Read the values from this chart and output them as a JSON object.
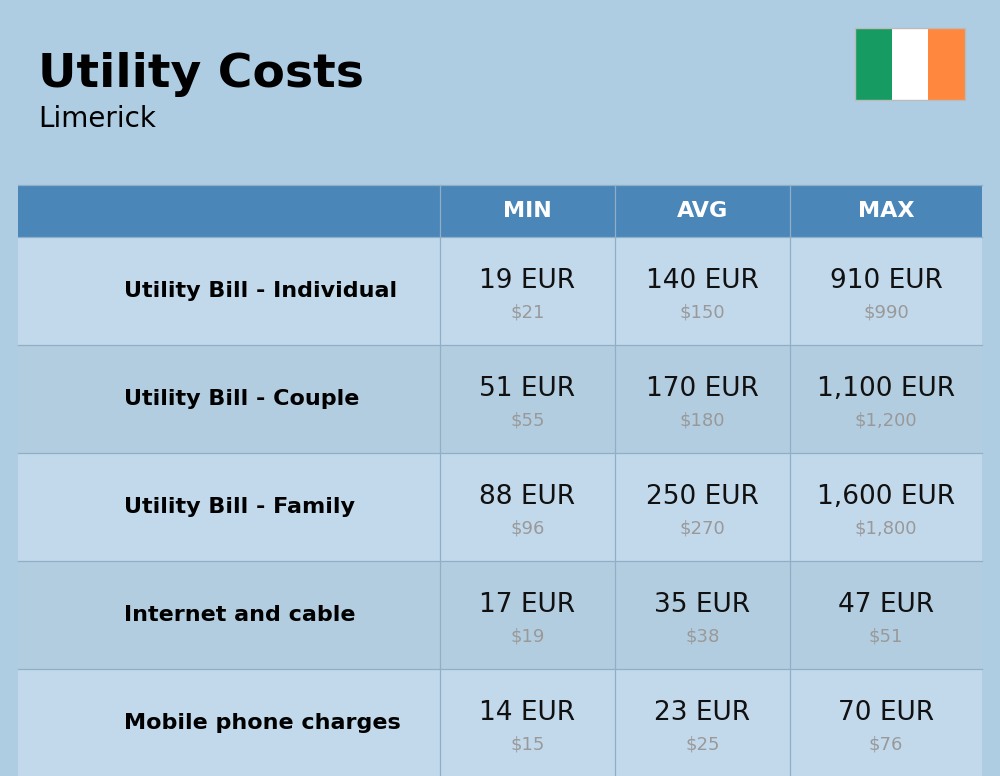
{
  "title": "Utility Costs",
  "subtitle": "Limerick",
  "background_color": "#aecde3",
  "header_color": "#4a86b8",
  "row_color_light": "#c2d9ec",
  "row_color_dark": "#b3cde0",
  "header_text_color": "#ffffff",
  "label_text_color": "#000000",
  "value_text_color": "#111111",
  "sub_value_text_color": "#999999",
  "grid_line_color": "#90aec5",
  "rows": [
    {
      "label": "Utility Bill - Individual",
      "min_eur": "19 EUR",
      "min_usd": "$21",
      "avg_eur": "140 EUR",
      "avg_usd": "$150",
      "max_eur": "910 EUR",
      "max_usd": "$990"
    },
    {
      "label": "Utility Bill - Couple",
      "min_eur": "51 EUR",
      "min_usd": "$55",
      "avg_eur": "170 EUR",
      "avg_usd": "$180",
      "max_eur": "1,100 EUR",
      "max_usd": "$1,200"
    },
    {
      "label": "Utility Bill - Family",
      "min_eur": "88 EUR",
      "min_usd": "$96",
      "avg_eur": "250 EUR",
      "avg_usd": "$270",
      "max_eur": "1,600 EUR",
      "max_usd": "$1,800"
    },
    {
      "label": "Internet and cable",
      "min_eur": "17 EUR",
      "min_usd": "$19",
      "avg_eur": "35 EUR",
      "avg_usd": "$38",
      "max_eur": "47 EUR",
      "max_usd": "$51"
    },
    {
      "label": "Mobile phone charges",
      "min_eur": "14 EUR",
      "min_usd": "$15",
      "avg_eur": "23 EUR",
      "avg_usd": "$25",
      "max_eur": "70 EUR",
      "max_usd": "$76"
    }
  ],
  "col_headers": [
    "MIN",
    "AVG",
    "MAX"
  ],
  "flag_colors": [
    "#169b62",
    "#ffffff",
    "#ff883e"
  ],
  "title_fontsize": 34,
  "subtitle_fontsize": 20,
  "header_fontsize": 16,
  "label_fontsize": 16,
  "value_fontsize": 19,
  "sub_value_fontsize": 13
}
